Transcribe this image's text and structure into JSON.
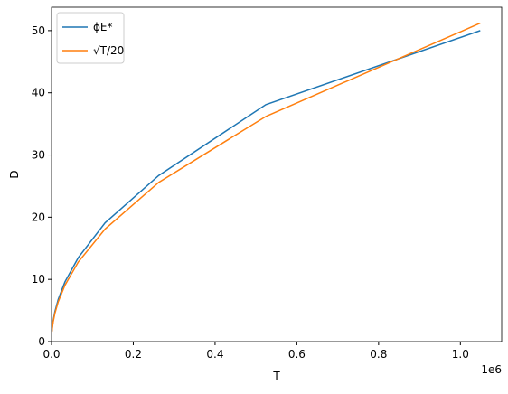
{
  "chart_data": {
    "type": "line",
    "x_label": "T",
    "y_label": "D",
    "x_offset_label": "1e6",
    "x": [
      1024,
      2048,
      4096,
      8192,
      16384,
      32768,
      65536,
      131072,
      262144,
      524288,
      1048576
    ],
    "series": [
      {
        "name": "ϕE*",
        "color": "#1f77b4",
        "values": [
          1.7,
          2.4,
          3.4,
          4.8,
          6.8,
          9.6,
          13.5,
          19.1,
          26.7,
          38.1,
          50.0
        ]
      },
      {
        "name": "√T/20",
        "color": "#ff7f0e",
        "values": [
          1.6,
          2.26,
          3.2,
          4.53,
          6.4,
          9.05,
          12.8,
          18.1,
          25.6,
          36.2,
          51.2
        ]
      }
    ],
    "xlim": [
      0,
      1101005
    ],
    "ylim": [
      0,
      53.76
    ],
    "xticks": [
      {
        "value": 0,
        "label": "0.0"
      },
      {
        "value": 200000,
        "label": "0.2"
      },
      {
        "value": 400000,
        "label": "0.4"
      },
      {
        "value": 600000,
        "label": "0.6"
      },
      {
        "value": 800000,
        "label": "0.8"
      },
      {
        "value": 1000000,
        "label": "1.0"
      }
    ],
    "yticks": [
      0,
      10,
      20,
      30,
      40,
      50
    ],
    "legend": "upper-left",
    "grid": false
  }
}
